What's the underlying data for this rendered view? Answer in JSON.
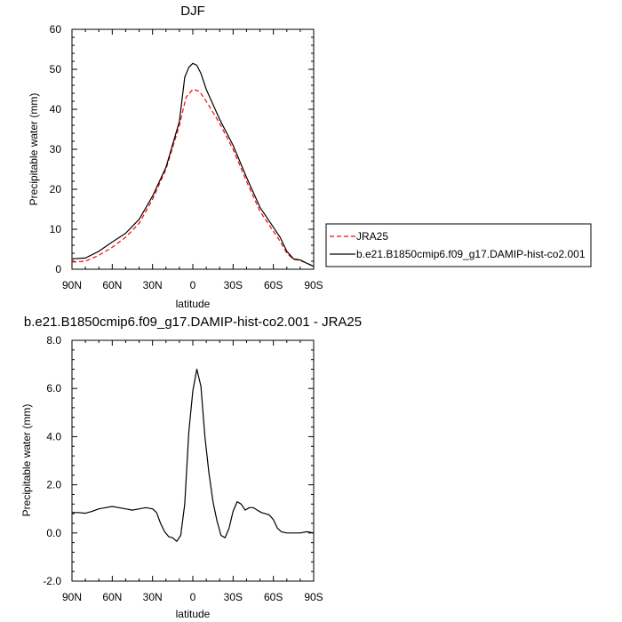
{
  "chart_data": [
    {
      "type": "line",
      "title": "DJF",
      "xlabel": "latitude",
      "ylabel": "Precipitable water (mm)",
      "x_ticks": [
        90,
        60,
        30,
        0,
        -30,
        -60,
        -90
      ],
      "x_tick_labels": [
        "90N",
        "60N",
        "30N",
        "0",
        "30S",
        "60S",
        "90S"
      ],
      "xlim": [
        90,
        -90
      ],
      "ylim": [
        0,
        60
      ],
      "y_ticks": [
        0,
        10,
        20,
        30,
        40,
        50,
        60
      ],
      "y_tick_labels": [
        "0",
        "10",
        "20",
        "30",
        "40",
        "50",
        "60"
      ],
      "legend": "right",
      "series": [
        {
          "name": "JRA25",
          "color": "#ff0000",
          "dash": true,
          "x": [
            90,
            80,
            70,
            60,
            50,
            40,
            30,
            20,
            10,
            5,
            0,
            -5,
            -10,
            -20,
            -30,
            -40,
            -50,
            -60,
            -65,
            -70,
            -75,
            -80,
            -85,
            -90
          ],
          "y": [
            1.8,
            2.0,
            3.5,
            5.5,
            8.0,
            11.5,
            17.5,
            25.0,
            36.0,
            43.0,
            45.0,
            44.5,
            42.0,
            36.5,
            30.0,
            22.0,
            14.5,
            9.5,
            7.0,
            4.0,
            2.5,
            2.2,
            1.5,
            0.8
          ]
        },
        {
          "name": "b.e21.B1850cmip6.f09_g17.DAMIP-hist-co2.001",
          "color": "#000000",
          "dash": false,
          "x": [
            90,
            80,
            70,
            60,
            50,
            40,
            30,
            20,
            10,
            6,
            3,
            0,
            -3,
            -6,
            -10,
            -20,
            -30,
            -40,
            -50,
            -60,
            -65,
            -70,
            -75,
            -80,
            -85,
            -90
          ],
          "y": [
            2.6,
            2.8,
            4.5,
            6.8,
            9.0,
            12.5,
            18.3,
            25.5,
            37.0,
            48.0,
            50.5,
            51.5,
            51.0,
            49.0,
            45.0,
            37.5,
            31.0,
            23.0,
            15.5,
            10.5,
            8.0,
            4.5,
            2.6,
            2.3,
            1.5,
            0.7
          ]
        }
      ]
    },
    {
      "type": "line",
      "title": "b.e21.B1850cmip6.f09_g17.DAMIP-hist-co2.001 - JRA25",
      "xlabel": "latitude",
      "ylabel": "Precipitable water (mm)",
      "x_ticks": [
        90,
        60,
        30,
        0,
        -30,
        -60,
        -90
      ],
      "x_tick_labels": [
        "90N",
        "60N",
        "30N",
        "0",
        "30S",
        "60S",
        "90S"
      ],
      "xlim": [
        90,
        -90
      ],
      "ylim": [
        -2,
        8
      ],
      "y_ticks": [
        -2,
        0,
        2,
        4,
        6,
        8
      ],
      "y_tick_labels": [
        "-2.0",
        "0.0",
        "2.0",
        "4.0",
        "6.0",
        "8.0"
      ],
      "series": [
        {
          "color": "#000000",
          "dash": false,
          "x": [
            90,
            85,
            80,
            75,
            70,
            65,
            60,
            55,
            50,
            45,
            40,
            35,
            30,
            27,
            24,
            21,
            18,
            15,
            12,
            9,
            6,
            3,
            0,
            -3,
            -6,
            -9,
            -12,
            -15,
            -18,
            -21,
            -24,
            -27,
            -30,
            -33,
            -36,
            -39,
            -42,
            -45,
            -48,
            -51,
            -54,
            -57,
            -60,
            -63,
            -66,
            -70,
            -75,
            -80,
            -85,
            -90
          ],
          "y": [
            0.85,
            0.85,
            0.82,
            0.9,
            1.0,
            1.05,
            1.1,
            1.05,
            1.0,
            0.95,
            1.0,
            1.05,
            1.0,
            0.85,
            0.4,
            0.05,
            -0.15,
            -0.2,
            -0.35,
            -0.1,
            1.2,
            4.2,
            5.9,
            6.8,
            6.1,
            4.0,
            2.5,
            1.3,
            0.5,
            -0.1,
            -0.2,
            0.2,
            0.9,
            1.3,
            1.2,
            0.95,
            1.05,
            1.05,
            0.95,
            0.85,
            0.8,
            0.75,
            0.55,
            0.2,
            0.05,
            0.0,
            0.0,
            0.0,
            0.05,
            0.0
          ]
        }
      ]
    }
  ]
}
